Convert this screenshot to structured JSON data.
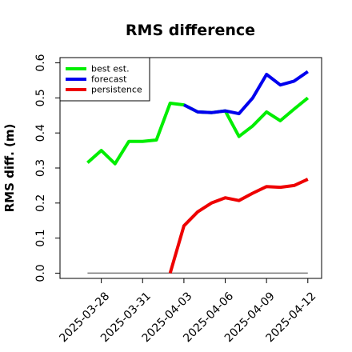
{
  "chart_data": {
    "type": "line",
    "title": "RMS difference",
    "ylabel": "RMS diff. (m)",
    "xlabel": "",
    "ylim": [
      -0.015,
      0.615
    ],
    "xlim": [
      "2025-03-25",
      "2025-04-13"
    ],
    "yticks": [
      0.0,
      0.1,
      0.2,
      0.3,
      0.4,
      0.5,
      0.6
    ],
    "ytick_labels": [
      "0.0",
      "0.1",
      "0.2",
      "0.3",
      "0.4",
      "0.5",
      "0.6"
    ],
    "xticks": [
      "2025-03-28",
      "2025-03-31",
      "2025-04-03",
      "2025-04-06",
      "2025-04-09",
      "2025-04-12"
    ],
    "xtick_labels": [
      "2025-03-28",
      "2025-03-31",
      "2025-04-03",
      "2025-04-06",
      "2025-04-09",
      "2025-04-12"
    ],
    "highlight_tick": "2025-04-03",
    "highlight_color": "#008000",
    "legend_position": "top-left",
    "series": [
      {
        "name": "best est.",
        "color": "#00ee00",
        "x": [
          "2025-03-27",
          "2025-03-28",
          "2025-03-29",
          "2025-03-30",
          "2025-03-31",
          "2025-04-01",
          "2025-04-02",
          "2025-04-03",
          "2025-04-04",
          "2025-04-05",
          "2025-04-06",
          "2025-04-07",
          "2025-04-08",
          "2025-04-09",
          "2025-04-10",
          "2025-04-11",
          "2025-04-12"
        ],
        "y": [
          0.315,
          0.35,
          0.312,
          0.376,
          0.376,
          0.38,
          0.485,
          0.48,
          0.46,
          0.458,
          0.463,
          0.39,
          0.42,
          0.46,
          0.435,
          0.468,
          0.5
        ]
      },
      {
        "name": "forecast",
        "color": "#0000ee",
        "x": [
          "2025-04-03",
          "2025-04-04",
          "2025-04-05",
          "2025-04-06",
          "2025-04-07",
          "2025-04-08",
          "2025-04-09",
          "2025-04-10",
          "2025-04-11",
          "2025-04-12"
        ],
        "y": [
          0.48,
          0.46,
          0.458,
          0.463,
          0.455,
          0.5,
          0.567,
          0.537,
          0.548,
          0.575
        ]
      },
      {
        "name": "persistence",
        "color": "#ee0000",
        "x": [
          "2025-04-02",
          "2025-04-03",
          "2025-04-04",
          "2025-04-05",
          "2025-04-06",
          "2025-04-07",
          "2025-04-08",
          "2025-04-09",
          "2025-04-10",
          "2025-04-11",
          "2025-04-12"
        ],
        "y": [
          0.0,
          0.135,
          0.175,
          0.2,
          0.215,
          0.207,
          0.228,
          0.247,
          0.245,
          0.25,
          0.268
        ]
      }
    ],
    "reference_line": {
      "color": "#777777",
      "x": [
        "2025-03-27",
        "2025-04-12"
      ],
      "y": 0.0
    }
  }
}
